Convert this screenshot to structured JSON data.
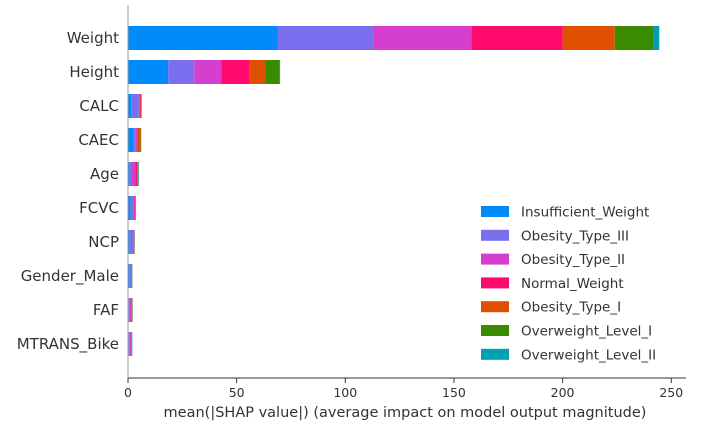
{
  "chart_data": {
    "type": "bar",
    "orientation": "horizontal",
    "stacked": true,
    "xlabel": "mean(|SHAP value|) (average impact on model output magnitude)",
    "xlim": [
      0,
      257
    ],
    "xticks": [
      0,
      50,
      100,
      150,
      200,
      250
    ],
    "categories": [
      "Weight",
      "Height",
      "CALC",
      "CAEC",
      "Age",
      "FCVC",
      "NCP",
      "Gender_Male",
      "FAF",
      "MTRANS_Bike"
    ],
    "series": [
      {
        "name": "Insufficient_Weight",
        "color": "#008bfb",
        "values": [
          69,
          18.5,
          1.5,
          2.5,
          0.8,
          1.2,
          0.5,
          0.8,
          0.3,
          0.3
        ]
      },
      {
        "name": "Obesity_Type_III",
        "color": "#7b6ff0",
        "values": [
          44,
          12,
          3.5,
          1.0,
          0.8,
          1.3,
          2.0,
          0.6,
          0.3,
          0.3
        ]
      },
      {
        "name": "Obesity_Type_II",
        "color": "#d63fcd",
        "values": [
          45,
          12.5,
          0.5,
          0.8,
          1.8,
          0.5,
          0.3,
          0.3,
          1.2,
          1.0
        ]
      },
      {
        "name": "Normal_Weight",
        "color": "#ff0a6c",
        "values": [
          42,
          13,
          0.3,
          0.3,
          0.8,
          0.2,
          0.1,
          0.1,
          0.1,
          0.1
        ]
      },
      {
        "name": "Obesity_Type_I",
        "color": "#de5000",
        "values": [
          24,
          7.5,
          0.2,
          1.2,
          0.3,
          0.2,
          0.1,
          0.1,
          0.1,
          0.1
        ]
      },
      {
        "name": "Overweight_Level_I",
        "color": "#3a8b00",
        "values": [
          18,
          6,
          0.2,
          0.2,
          0.3,
          0.2,
          0.1,
          0.1,
          0.1,
          0.1
        ]
      },
      {
        "name": "Overweight_Level_II",
        "color": "#00a0b2",
        "values": [
          2.5,
          0.5,
          0.1,
          0.1,
          0.2,
          0.1,
          0.1,
          0.1,
          0.1,
          0.1
        ]
      }
    ],
    "legend": "right",
    "grid": false
  }
}
